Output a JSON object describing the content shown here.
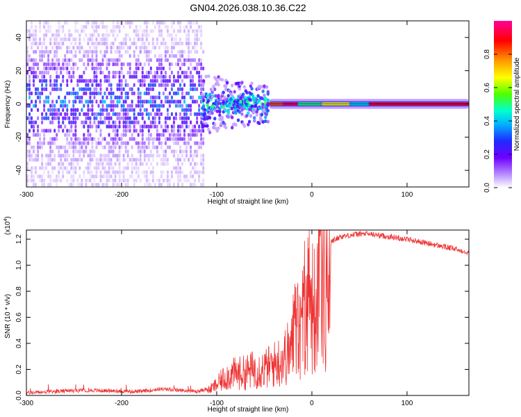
{
  "title": "GN04.2026.038.10.36.C22",
  "chart_data": [
    {
      "type": "heatmap",
      "xlabel": "Height of straight line (km)",
      "ylabel": "Frequency (Hz)",
      "xlim": [
        -300,
        165
      ],
      "ylim": [
        -50,
        50
      ],
      "xticks": [
        -300,
        -200,
        -100,
        0,
        100
      ],
      "yticks": [
        -40,
        -20,
        0,
        20,
        40
      ],
      "colorbar": {
        "label": "Normalized spectral amplitude",
        "range": [
          0,
          1
        ],
        "ticks": [
          "0.0",
          "0.2",
          "0.4",
          "0.6",
          "0.8"
        ],
        "colormap": [
          "#ffffff",
          "#b78cff",
          "#6f00ff",
          "#1f2bff",
          "#00b3ff",
          "#00ffd0",
          "#4dff00",
          "#ffff00",
          "#ff9a00",
          "#ff0000",
          "#ff0099"
        ]
      },
      "regions": [
        {
          "x_from": -300,
          "x_to": -115,
          "description_values": {
            "freq_spread_hz": 50,
            "amplitude": 0.2
          }
        },
        {
          "x_from": -115,
          "x_to": -45,
          "description_values": {
            "freq_spread_hz": 10,
            "amplitude": 0.4
          }
        },
        {
          "x_from": -45,
          "x_to": 165,
          "description_values": {
            "freq_spread_hz": 1,
            "amplitude": 0.9
          }
        }
      ]
    },
    {
      "type": "line",
      "xlabel": "Height of straight line (km)",
      "ylabel": "SNR (10 * v/v)",
      "yscale_label": "(x10",
      "yscale_exp": "4",
      "xlim": [
        -300,
        165
      ],
      "ylim": [
        0,
        1.27
      ],
      "xticks": [
        -300,
        -200,
        -100,
        0,
        100
      ],
      "yticks": [
        "0.0",
        "0.2",
        "0.4",
        "0.6",
        "0.8",
        "1.0",
        "1.2"
      ],
      "color": "#ee3333",
      "series": [
        {
          "name": "SNR",
          "x": [
            -300,
            -240,
            -180,
            -160,
            -120,
            -110,
            -100,
            -90,
            -80,
            -70,
            -60,
            -50,
            -40,
            -30,
            -20,
            -10,
            0,
            10,
            20,
            30,
            40,
            50,
            60,
            80,
            100,
            120,
            140,
            165
          ],
          "values": [
            0.02,
            0.04,
            0.03,
            0.05,
            0.03,
            0.05,
            0.12,
            0.22,
            0.25,
            0.26,
            0.3,
            0.3,
            0.35,
            0.42,
            0.55,
            0.75,
            0.95,
            1.05,
            1.18,
            1.22,
            1.23,
            1.24,
            1.24,
            1.22,
            1.2,
            1.17,
            1.14,
            1.1
          ]
        }
      ]
    }
  ]
}
